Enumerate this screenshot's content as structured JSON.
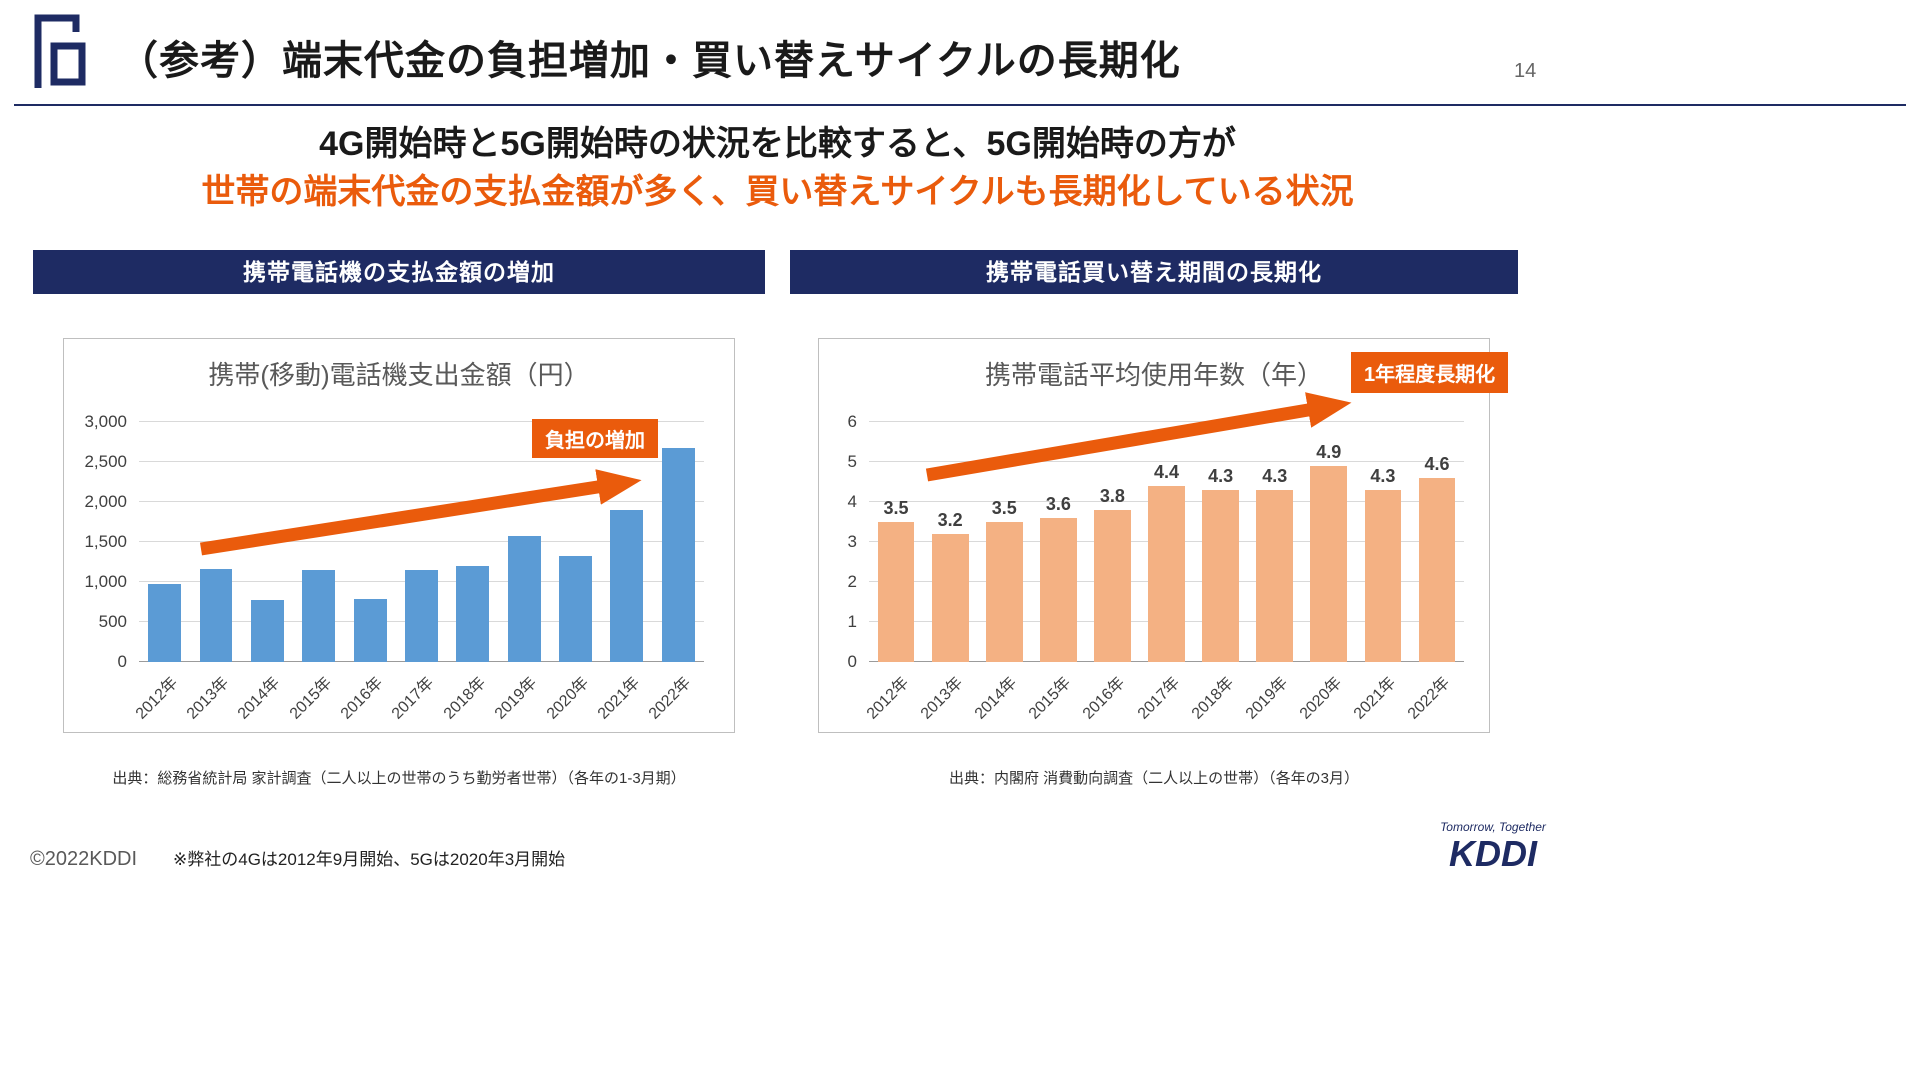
{
  "slide": {
    "title": "（参考）端末代金の負担増加・買い替えサイクルの長期化",
    "page_number": "14",
    "subtitle_line1": "4G開始時と5G開始時の状況を比較すると、5G開始時の方が",
    "subtitle_line2": "世帯の端末代金の支払金額が多く、買い替えサイクルも長期化している状況",
    "footer": {
      "copyright": "©2022KDDI",
      "note": "※弊社の4Gは2012年9月開始、5Gは2020年3月開始"
    },
    "brand": {
      "tagline": "Tomorrow, Together",
      "name": "KDDI"
    }
  },
  "colors": {
    "navy": "#1e2b63",
    "orange": "#ea5b0c",
    "bar_blue": "#5b9bd5",
    "bar_orange": "#f4b183"
  },
  "panels": [
    {
      "header": "携帯電話機の支払金額の増加",
      "annotation": "負担の増加",
      "source": "出典：総務省統計局 家計調査（二人以上の世帯のうち勤労者世帯）（各年の1-3月期）"
    },
    {
      "header": "携帯電話買い替え期間の長期化",
      "annotation": "1年程度長期化",
      "source": "出典：内閣府 消費動向調査（二人以上の世帯）（各年の3月）"
    }
  ],
  "chart_data": [
    {
      "type": "bar",
      "title": "携帯(移動)電話機支出金額（円）",
      "categories": [
        "2012年",
        "2013年",
        "2014年",
        "2015年",
        "2016年",
        "2017年",
        "2018年",
        "2019年",
        "2020年",
        "2021年",
        "2022年"
      ],
      "values": [
        970,
        1160,
        770,
        1150,
        790,
        1150,
        1200,
        1580,
        1320,
        1900,
        2680
      ],
      "value_labels": null,
      "ylim": [
        0,
        3000
      ],
      "yticks": [
        0,
        500,
        1000,
        1500,
        2000,
        2500,
        3000
      ],
      "ytick_labels": [
        "0",
        "500",
        "1,000",
        "1,500",
        "2,000",
        "2,500",
        "3,000"
      ],
      "bar_color": "#5b9bd5",
      "grid": true,
      "legend": false,
      "annotation": "負担の増加"
    },
    {
      "type": "bar",
      "title": "携帯電話平均使用年数（年）",
      "categories": [
        "2012年",
        "2013年",
        "2014年",
        "2015年",
        "2016年",
        "2017年",
        "2018年",
        "2019年",
        "2020年",
        "2021年",
        "2022年"
      ],
      "values": [
        3.5,
        3.2,
        3.5,
        3.6,
        3.8,
        4.4,
        4.3,
        4.3,
        4.9,
        4.3,
        4.6
      ],
      "value_labels": [
        "3.5",
        "3.2",
        "3.5",
        "3.6",
        "3.8",
        "4.4",
        "4.3",
        "4.3",
        "4.9",
        "4.3",
        "4.6"
      ],
      "ylim": [
        0,
        6
      ],
      "yticks": [
        0,
        1,
        2,
        3,
        4,
        5,
        6
      ],
      "ytick_labels": [
        "0",
        "1",
        "2",
        "3",
        "4",
        "5",
        "6"
      ],
      "bar_color": "#f4b183",
      "grid": true,
      "legend": false,
      "annotation": "1年程度長期化"
    }
  ]
}
